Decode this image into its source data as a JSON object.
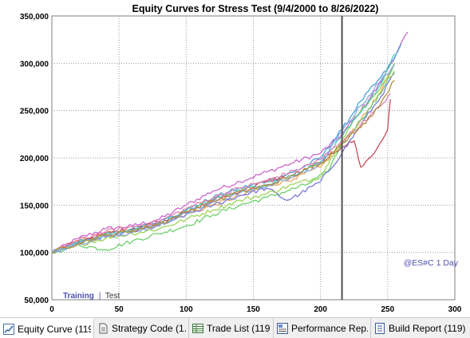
{
  "chart_data": {
    "type": "line",
    "title": "Equity Curves for Stress Test (9/4/2000 to 8/26/2022)",
    "xlabel": "",
    "ylabel": "",
    "xlim": [
      0,
      300
    ],
    "ylim": [
      50000,
      350000
    ],
    "x_ticks": [
      "0",
      "50",
      "100",
      "150",
      "200",
      "250",
      "300"
    ],
    "y_ticks": [
      "50,000",
      "100,000",
      "150,000",
      "200,000",
      "250,000",
      "300,000",
      "350,000"
    ],
    "grid": true,
    "vertical_marker_x": 216,
    "annotation_right": "@ES#C 1 Day",
    "legend_training": "Training",
    "legend_sep": "|",
    "legend_test": "Test",
    "series": [
      {
        "color": "#cc66cc",
        "x": [
          0,
          20,
          40,
          60,
          80,
          100,
          120,
          140,
          160,
          180,
          200,
          216,
          230,
          245,
          258,
          265
        ],
        "y": [
          100000,
          115000,
          125000,
          128000,
          135000,
          150000,
          165000,
          175000,
          185000,
          195000,
          205000,
          225000,
          250000,
          280000,
          315000,
          333000
        ]
      },
      {
        "color": "#4a9fd8",
        "x": [
          0,
          20,
          40,
          60,
          80,
          100,
          120,
          140,
          160,
          180,
          200,
          216,
          230,
          245,
          255,
          260
        ],
        "y": [
          100000,
          110000,
          118000,
          125000,
          132000,
          145000,
          158000,
          168000,
          175000,
          185000,
          200000,
          230000,
          260000,
          285000,
          305000,
          320000
        ]
      },
      {
        "color": "#e8a85a",
        "x": [
          0,
          20,
          40,
          60,
          80,
          100,
          120,
          140,
          160,
          180,
          200,
          216,
          230,
          245,
          255
        ],
        "y": [
          100000,
          112000,
          120000,
          124000,
          130000,
          140000,
          150000,
          160000,
          170000,
          178000,
          190000,
          215000,
          240000,
          270000,
          300000
        ]
      },
      {
        "color": "#6ccf6c",
        "x": [
          0,
          10,
          20,
          40,
          60,
          80,
          100,
          120,
          140,
          160,
          175,
          190,
          205,
          216,
          230,
          245,
          255
        ],
        "y": [
          100000,
          104000,
          108000,
          103000,
          112000,
          120000,
          128000,
          140000,
          150000,
          158000,
          165000,
          172000,
          185000,
          215000,
          240000,
          268000,
          300000
        ]
      },
      {
        "color": "#c24d5a",
        "x": [
          0,
          20,
          40,
          60,
          80,
          100,
          120,
          140,
          160,
          180,
          200,
          216,
          225,
          230,
          240,
          250,
          252
        ],
        "y": [
          100000,
          112000,
          120000,
          125000,
          132000,
          142000,
          155000,
          165000,
          175000,
          182000,
          195000,
          212000,
          218000,
          190000,
          205000,
          230000,
          262000
        ]
      },
      {
        "color": "#7a7ad6",
        "x": [
          0,
          20,
          40,
          60,
          80,
          100,
          120,
          140,
          160,
          175,
          185,
          200,
          216,
          230,
          245,
          255
        ],
        "y": [
          100000,
          110000,
          116000,
          122000,
          128000,
          140000,
          150000,
          160000,
          168000,
          155000,
          162000,
          175000,
          205000,
          235000,
          265000,
          290000
        ]
      },
      {
        "color": "#9fd45a",
        "x": [
          0,
          20,
          40,
          60,
          80,
          100,
          120,
          140,
          160,
          180,
          200,
          216,
          230,
          245,
          255
        ],
        "y": [
          100000,
          108000,
          115000,
          120000,
          125000,
          135000,
          145000,
          155000,
          162000,
          172000,
          180000,
          220000,
          250000,
          275000,
          292000
        ]
      },
      {
        "color": "#52c7b8",
        "x": [
          0,
          20,
          40,
          60,
          80,
          100,
          120,
          140,
          160,
          180,
          200,
          216,
          230,
          245,
          255
        ],
        "y": [
          100000,
          111000,
          119000,
          124000,
          131000,
          144000,
          156000,
          166000,
          172000,
          182000,
          196000,
          222000,
          248000,
          278000,
          310000
        ]
      },
      {
        "color": "#e082b0",
        "x": [
          0,
          20,
          40,
          60,
          80,
          100,
          120,
          140,
          160,
          180,
          200,
          216,
          230,
          245,
          252
        ],
        "y": [
          100000,
          113000,
          122000,
          127000,
          133000,
          146000,
          158000,
          168000,
          176000,
          186000,
          198000,
          218000,
          235000,
          255000,
          268000
        ]
      },
      {
        "color": "#8aa8e0",
        "x": [
          0,
          20,
          40,
          60,
          80,
          100,
          120,
          140,
          160,
          180,
          200,
          216,
          230,
          245,
          255
        ],
        "y": [
          100000,
          109000,
          117000,
          121000,
          129000,
          141000,
          153000,
          163000,
          170000,
          180000,
          193000,
          228000,
          255000,
          282000,
          298000
        ]
      },
      {
        "color": "#b38f3d",
        "x": [
          0,
          20,
          40,
          60,
          80,
          100,
          120,
          140,
          160,
          180,
          200,
          216,
          230,
          245,
          255
        ],
        "y": [
          100000,
          110000,
          118000,
          123000,
          130000,
          143000,
          154000,
          164000,
          171000,
          181000,
          194000,
          216000,
          232000,
          258000,
          282000
        ]
      }
    ]
  },
  "tabs": [
    {
      "label": "Equity Curve (119)",
      "icon": "equity-curve-icon"
    },
    {
      "label": "Strategy Code (1...",
      "icon": "document-icon"
    },
    {
      "label": "Trade List (119)",
      "icon": "table-icon"
    },
    {
      "label": "Performance Rep...",
      "icon": "report-icon"
    },
    {
      "label": "Build Report (119)",
      "icon": "list-report-icon"
    }
  ],
  "colors": {
    "marker_line": "#505050",
    "grid": "#9a9a9a",
    "annotation": "#5050b0",
    "legend_text": "#5050b0"
  }
}
